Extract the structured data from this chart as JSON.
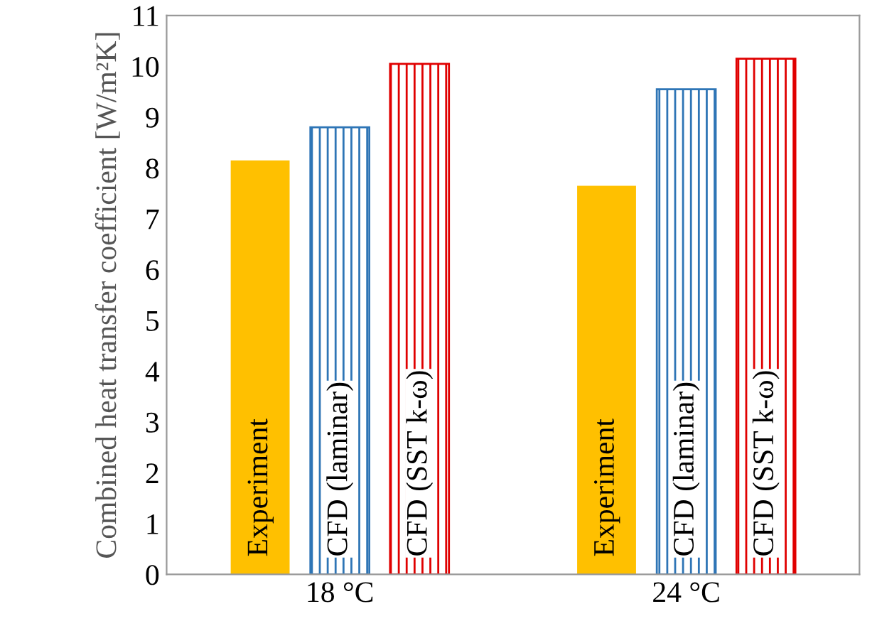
{
  "chart_data": {
    "type": "bar",
    "ylabel": "Combined heat transfer coefficient [W/m²K]",
    "categories": [
      "18 °C",
      "24 °C"
    ],
    "series": [
      {
        "name": "Experiment",
        "color": "#ffc000",
        "values": [
          8.15,
          7.65
        ]
      },
      {
        "name": "CFD (laminar)",
        "color": "#2e75b6",
        "values": [
          8.8,
          9.55
        ]
      },
      {
        "name": "CFD (SST k-ω)",
        "color": "#e00000",
        "values": [
          10.05,
          10.15
        ]
      }
    ],
    "ylim": [
      0,
      11
    ],
    "yticks": [
      0,
      1,
      2,
      3,
      4,
      5,
      6,
      7,
      8,
      9,
      10,
      11
    ],
    "grid": false,
    "legend": false
  }
}
